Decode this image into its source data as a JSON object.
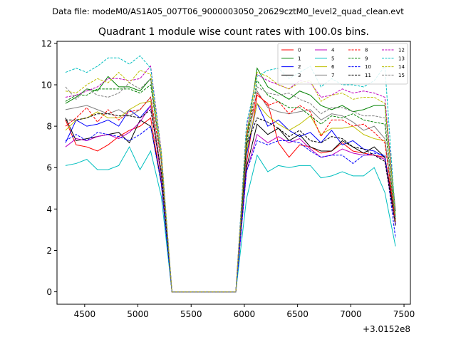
{
  "chart_data": {
    "type": "line",
    "suptitle": "Data file: modeM0/AS1A05_007T06_9000003050_20629cztM0_level2_quad_clean.evt",
    "title": "Quadrant 1 module wise count rates with 100.0s bins.",
    "xlabel": "",
    "ylabel": "",
    "offset_label": "+3.0152e8",
    "xlim": [
      4240,
      7560
    ],
    "ylim": [
      -0.6,
      12.1
    ],
    "xticks": [
      4500,
      5000,
      5500,
      6000,
      6500,
      7000,
      7500
    ],
    "yticks": [
      0,
      2,
      4,
      6,
      8,
      10,
      12
    ],
    "x": [
      4320,
      4420,
      4520,
      4620,
      4720,
      4820,
      4920,
      5020,
      5120,
      5220,
      5320,
      5420,
      5520,
      5620,
      5720,
      5820,
      5920,
      6020,
      6120,
      6220,
      6320,
      6420,
      6520,
      6620,
      6720,
      6820,
      6920,
      7020,
      7120,
      7220,
      7320,
      7420
    ],
    "legend_position": "upper-right",
    "series": [
      {
        "name": "0",
        "color": "#ff0000",
        "dash": false,
        "values": [
          8.3,
          7.1,
          7.0,
          6.8,
          7.1,
          7.5,
          7.8,
          8.0,
          8.4,
          5.2,
          0,
          0,
          0,
          0,
          0,
          0,
          0,
          6.2,
          9.5,
          9.1,
          7.2,
          6.5,
          7.1,
          7.0,
          6.7,
          6.8,
          7.2,
          6.8,
          6.7,
          6.6,
          6.5,
          3.7
        ]
      },
      {
        "name": "1",
        "color": "#008000",
        "dash": false,
        "values": [
          9.1,
          9.4,
          9.8,
          9.7,
          10.4,
          9.9,
          9.9,
          9.7,
          10.3,
          6.3,
          0,
          0,
          0,
          0,
          0,
          0,
          0,
          7.4,
          10.8,
          9.9,
          9.6,
          9.3,
          9.7,
          9.5,
          9.0,
          8.8,
          9.0,
          8.7,
          8.8,
          9.0,
          9.0,
          3.9
        ]
      },
      {
        "name": "2",
        "color": "#0000ff",
        "dash": false,
        "values": [
          7.2,
          8.3,
          8.0,
          8.1,
          8.3,
          8.0,
          8.8,
          8.4,
          9.0,
          5.7,
          0,
          0,
          0,
          0,
          0,
          0,
          0,
          6.6,
          9.1,
          8.0,
          8.3,
          7.8,
          7.5,
          7.7,
          7.2,
          7.8,
          7.1,
          7.3,
          6.9,
          6.8,
          6.5,
          3.3
        ]
      },
      {
        "name": "3",
        "color": "#000000",
        "dash": false,
        "values": [
          8.4,
          7.3,
          7.4,
          7.5,
          7.6,
          7.7,
          7.2,
          8.3,
          8.0,
          5.3,
          0,
          0,
          0,
          0,
          0,
          0,
          0,
          6.0,
          8.1,
          7.6,
          7.9,
          7.3,
          7.6,
          7.0,
          6.8,
          6.8,
          7.3,
          7.0,
          6.7,
          7.0,
          6.5,
          3.4
        ]
      },
      {
        "name": "4",
        "color": "#bf00bf",
        "dash": false,
        "values": [
          7.0,
          7.4,
          7.3,
          7.5,
          7.6,
          7.4,
          7.7,
          8.2,
          9.0,
          5.5,
          0,
          0,
          0,
          0,
          0,
          0,
          0,
          5.8,
          7.6,
          7.2,
          7.5,
          7.2,
          7.4,
          6.9,
          6.5,
          6.6,
          6.9,
          6.7,
          6.6,
          6.6,
          6.4,
          3.2
        ]
      },
      {
        "name": "5",
        "color": "#00bfbf",
        "dash": false,
        "values": [
          6.1,
          6.2,
          6.4,
          5.9,
          5.9,
          6.1,
          7.0,
          5.9,
          6.8,
          4.6,
          0,
          0,
          0,
          0,
          0,
          0,
          0,
          4.5,
          6.6,
          5.8,
          6.1,
          6.0,
          6.1,
          6.1,
          5.5,
          5.6,
          5.8,
          5.6,
          5.6,
          6.0,
          4.8,
          2.2
        ]
      },
      {
        "name": "6",
        "color": "#bfbf00",
        "dash": false,
        "values": [
          7.8,
          8.3,
          8.4,
          8.7,
          8.4,
          8.4,
          8.8,
          9.1,
          9.2,
          5.8,
          0,
          0,
          0,
          0,
          0,
          0,
          0,
          6.8,
          9.1,
          8.5,
          8.1,
          7.8,
          8.1,
          8.5,
          7.6,
          7.9,
          7.9,
          8.0,
          7.6,
          7.4,
          7.3,
          3.4
        ]
      },
      {
        "name": "7",
        "color": "#808080",
        "dash": false,
        "values": [
          8.8,
          8.9,
          9.0,
          8.8,
          8.6,
          8.8,
          8.5,
          8.8,
          9.4,
          5.7,
          0,
          0,
          0,
          0,
          0,
          0,
          0,
          7.0,
          9.7,
          8.9,
          8.7,
          8.6,
          8.7,
          8.8,
          8.3,
          8.6,
          8.5,
          8.2,
          7.8,
          8.0,
          7.4,
          3.5
        ]
      },
      {
        "name": "8",
        "color": "#ff0000",
        "dash": true,
        "values": [
          8.0,
          8.4,
          8.9,
          8.2,
          8.8,
          8.3,
          8.7,
          8.8,
          9.4,
          6.3,
          0,
          0,
          0,
          0,
          0,
          0,
          0,
          7.5,
          9.6,
          9.0,
          9.2,
          8.6,
          9.0,
          8.7,
          7.5,
          8.3,
          8.3,
          8.0,
          8.1,
          7.7,
          7.2,
          3.4
        ]
      },
      {
        "name": "9",
        "color": "#008000",
        "dash": true,
        "values": [
          9.2,
          9.5,
          9.5,
          9.8,
          9.8,
          9.8,
          9.8,
          9.6,
          10.0,
          6.4,
          0,
          0,
          0,
          0,
          0,
          0,
          0,
          7.2,
          10.2,
          9.5,
          9.2,
          8.9,
          8.9,
          8.5,
          8.1,
          8.5,
          8.4,
          8.6,
          8.3,
          8.2,
          8.1,
          3.5
        ]
      },
      {
        "name": "10",
        "color": "#0000ff",
        "dash": true,
        "values": [
          7.3,
          7.6,
          7.3,
          7.7,
          7.6,
          7.5,
          7.3,
          7.6,
          8.0,
          5.2,
          0,
          0,
          0,
          0,
          0,
          0,
          0,
          5.8,
          7.3,
          7.1,
          7.3,
          7.3,
          7.2,
          6.8,
          6.5,
          6.6,
          6.6,
          6.2,
          6.6,
          6.7,
          6.6,
          2.6
        ]
      },
      {
        "name": "11",
        "color": "#000000",
        "dash": true,
        "values": [
          8.3,
          8.3,
          8.4,
          8.6,
          8.6,
          8.5,
          8.5,
          8.4,
          8.8,
          5.8,
          0,
          0,
          0,
          0,
          0,
          0,
          0,
          7.1,
          8.4,
          8.2,
          7.9,
          7.5,
          7.8,
          7.3,
          7.2,
          7.5,
          7.4,
          7.0,
          6.9,
          6.6,
          6.3,
          3.2
        ]
      },
      {
        "name": "12",
        "color": "#bf00bf",
        "dash": true,
        "values": [
          9.4,
          9.5,
          9.7,
          9.9,
          10.3,
          10.3,
          10.2,
          10.3,
          10.9,
          6.8,
          0,
          0,
          0,
          0,
          0,
          0,
          0,
          8.0,
          10.5,
          10.2,
          10.0,
          9.8,
          10.2,
          10.1,
          9.4,
          9.5,
          9.8,
          9.6,
          9.7,
          9.6,
          9.4,
          3.9
        ]
      },
      {
        "name": "13",
        "color": "#00bfbf",
        "dash": true,
        "values": [
          10.6,
          10.8,
          10.6,
          10.9,
          11.3,
          11.3,
          11.0,
          11.4,
          10.8,
          6.7,
          0,
          0,
          0,
          0,
          0,
          0,
          0,
          8.1,
          10.4,
          10.7,
          10.8,
          10.3,
          10.6,
          10.9,
          9.9,
          10.3,
          10.0,
          10.0,
          9.9,
          10.2,
          10.9,
          3.6
        ]
      },
      {
        "name": "14",
        "color": "#bfbf00",
        "dash": true,
        "values": [
          9.7,
          9.6,
          10.0,
          10.3,
          10.1,
          10.6,
          10.1,
          10.7,
          10.5,
          6.7,
          0,
          0,
          0,
          0,
          0,
          0,
          0,
          7.6,
          10.6,
          10.4,
          10.0,
          9.8,
          10.1,
          10.2,
          9.2,
          9.5,
          9.6,
          9.3,
          9.4,
          9.4,
          9.1,
          3.7
        ]
      },
      {
        "name": "15",
        "color": "#808080",
        "dash": true,
        "values": [
          9.9,
          9.3,
          9.8,
          9.5,
          9.4,
          9.6,
          10.1,
          9.8,
          10.3,
          6.3,
          0,
          0,
          0,
          0,
          0,
          0,
          0,
          7.8,
          9.9,
          9.6,
          9.5,
          9.6,
          9.3,
          9.1,
          8.6,
          8.9,
          8.9,
          8.7,
          8.5,
          8.5,
          8.4,
          3.6
        ]
      }
    ]
  }
}
